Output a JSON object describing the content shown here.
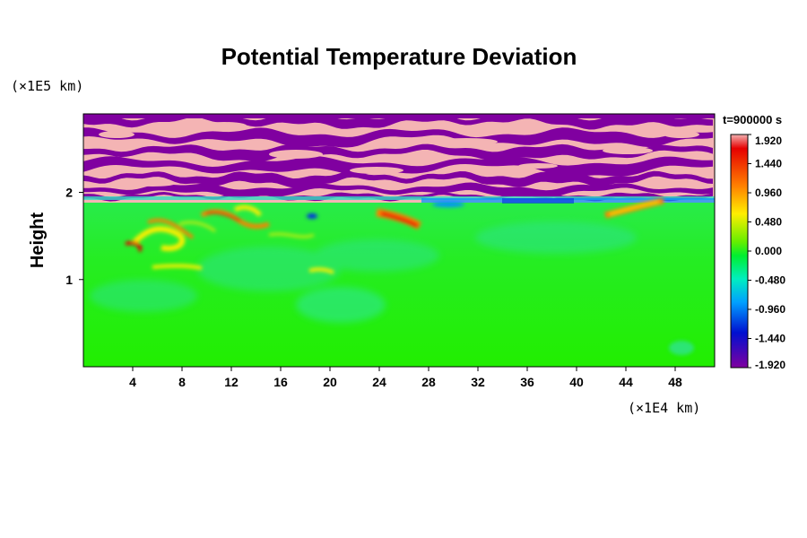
{
  "chart_data": {
    "type": "heatmap",
    "title": "Potential Temperature Deviation",
    "ylabel": "Height",
    "x_unit": "(×1E4 km)",
    "y_unit": "(×1E5 km)",
    "time_label": "t=900000 s",
    "x_ticks": [
      "4",
      "8",
      "12",
      "16",
      "20",
      "24",
      "28",
      "32",
      "36",
      "40",
      "44",
      "48"
    ],
    "x_tick_values": [
      4,
      8,
      12,
      16,
      20,
      24,
      28,
      32,
      36,
      40,
      44,
      48
    ],
    "xlim": [
      0,
      51.2
    ],
    "y_ticks": [
      "1",
      "2"
    ],
    "y_tick_values": [
      1,
      2
    ],
    "ylim": [
      0,
      2.9
    ],
    "colorbar": {
      "ticks": [
        "1.920",
        "1.440",
        "0.960",
        "0.480",
        "0.000",
        "-0.480",
        "-0.960",
        "-1.440",
        "-1.920"
      ],
      "values": [
        1.92,
        1.44,
        0.96,
        0.48,
        0.0,
        -0.48,
        -0.96,
        -1.44,
        -1.92
      ],
      "range": [
        -1.92,
        1.92
      ]
    },
    "field_regions": [
      {
        "region": "upper layer (above ~1.9)",
        "pattern": "alternating bands of max (pink) and min (purple)",
        "min": -1.92,
        "max": 1.92
      },
      {
        "region": "lower layer (below ~1.9)",
        "pattern": "mostly near zero (green)",
        "typical": 0.0
      },
      {
        "feature": "warm filaments",
        "x_range": [
          4,
          14
        ],
        "y_range": [
          1.1,
          1.9
        ],
        "value": 1.2
      },
      {
        "feature": "warm streak",
        "x_range": [
          24,
          27
        ],
        "y_range": [
          1.65,
          1.85
        ],
        "value": 1.7
      },
      {
        "feature": "warm streak",
        "x_range": [
          42,
          47
        ],
        "y_range": [
          1.75,
          1.9
        ],
        "value": 1.2
      },
      {
        "feature": "cool strip",
        "x_range": [
          28,
          48
        ],
        "y_range": [
          1.85,
          1.92
        ],
        "value": -1.0
      }
    ]
  },
  "colors": {
    "max": "#f4b4b4",
    "min": "#8000a0",
    "zero": "#22ee00"
  }
}
